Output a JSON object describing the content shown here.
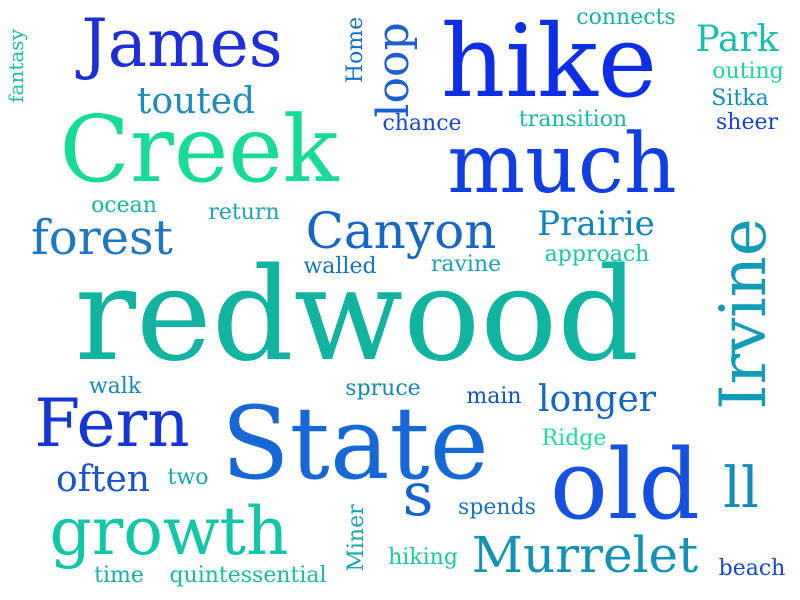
{
  "words": [
    {
      "text": "redwood",
      "color": "#10b4a0"
    },
    {
      "text": "Creek",
      "color": "#16dc98"
    },
    {
      "text": "hike",
      "color": "#0b2ee6"
    },
    {
      "text": "much",
      "color": "#0e3ee4"
    },
    {
      "text": "State",
      "color": "#1668d6"
    },
    {
      "text": "old",
      "color": "#1450e2"
    },
    {
      "text": "James",
      "color": "#1f2ed8"
    },
    {
      "text": "growth",
      "color": "#10c8a8"
    },
    {
      "text": "Fern",
      "color": "#1436d6"
    },
    {
      "text": "Irvine",
      "color": "#139cb6"
    },
    {
      "text": "Murrelet",
      "color": "#1292b4"
    },
    {
      "text": "Canyon",
      "color": "#1666c6"
    },
    {
      "text": "forest",
      "color": "#1e78c0"
    },
    {
      "text": "Park",
      "color": "#16c0ac"
    },
    {
      "text": "Prairie",
      "color": "#1184bc"
    },
    {
      "text": "longer",
      "color": "#1566c6"
    },
    {
      "text": "ll",
      "color": "#138cb6"
    },
    {
      "text": "s",
      "color": "#1462d2"
    },
    {
      "text": "often",
      "color": "#1a52d2"
    },
    {
      "text": "loop",
      "color": "#1a60ce"
    },
    {
      "text": "touted",
      "color": "#1e8cb8"
    },
    {
      "text": "connects",
      "color": "#14b4a4"
    },
    {
      "text": "outing",
      "color": "#1ad8a0"
    },
    {
      "text": "Sitka",
      "color": "#1090b4"
    },
    {
      "text": "sheer",
      "color": "#1a3ed8"
    },
    {
      "text": "chance",
      "color": "#1848d4"
    },
    {
      "text": "transition",
      "color": "#16b8a8"
    },
    {
      "text": "ocean",
      "color": "#16b4a8"
    },
    {
      "text": "return",
      "color": "#1aa6b0"
    },
    {
      "text": "walled",
      "color": "#1672c2"
    },
    {
      "text": "ravine",
      "color": "#16a4b0"
    },
    {
      "text": "approach",
      "color": "#16c8a4"
    },
    {
      "text": "walk",
      "color": "#1488b8"
    },
    {
      "text": "spruce",
      "color": "#1288b8"
    },
    {
      "text": "main",
      "color": "#1450d2"
    },
    {
      "text": "Ridge",
      "color": "#1ae09a"
    },
    {
      "text": "two",
      "color": "#16aaac"
    },
    {
      "text": "spends",
      "color": "#1670c4"
    },
    {
      "text": "Miner",
      "color": "#15a6b0"
    },
    {
      "text": "hiking",
      "color": "#18cca2"
    },
    {
      "text": "time",
      "color": "#14b0a8"
    },
    {
      "text": "quintessential",
      "color": "#17bca8"
    },
    {
      "text": "beach",
      "color": "#1646d8"
    },
    {
      "text": "fantasy",
      "color": "#16c0a8"
    },
    {
      "text": "Home",
      "color": "#1470c8"
    }
  ]
}
